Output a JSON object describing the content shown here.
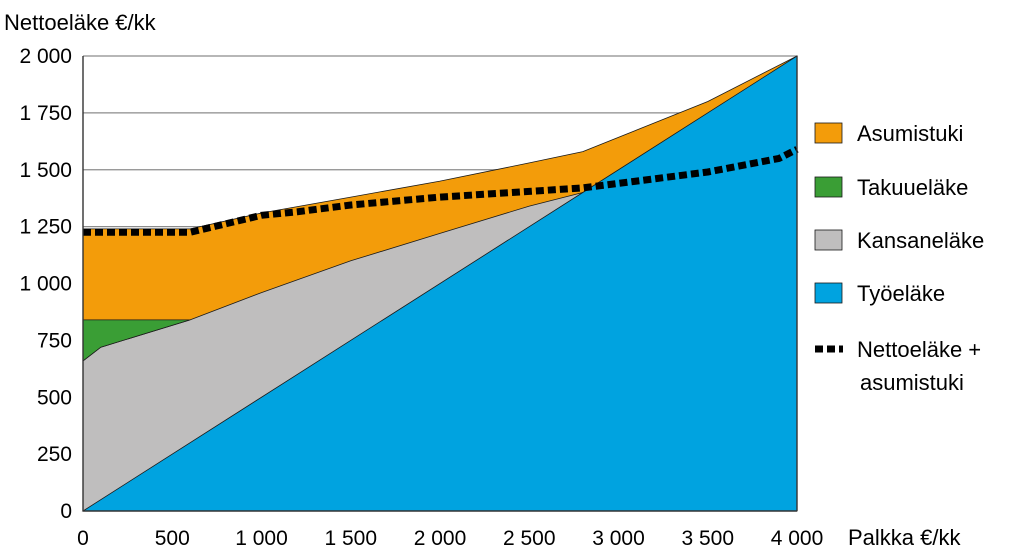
{
  "chart_data": {
    "type": "area",
    "ylabel": "Nettoeläke €/kk",
    "xlabel": "Palkka €/kk",
    "xlim": [
      0,
      4000
    ],
    "ylim": [
      0,
      2000
    ],
    "xticks": [
      0,
      500,
      1000,
      1500,
      2000,
      2500,
      3000,
      3500,
      4000
    ],
    "yticks": [
      0,
      250,
      500,
      750,
      1000,
      1250,
      1500,
      1750,
      2000
    ],
    "xtick_labels": [
      "0",
      "500",
      "1 000",
      "1 500",
      "2 000",
      "2 500",
      "3 000",
      "3 500",
      "4 000"
    ],
    "ytick_labels": [
      "0",
      "250",
      "500",
      "750",
      "1 000",
      "1 250",
      "1 500",
      "1 750",
      "2 000"
    ],
    "grid": "horizontal",
    "legend_position": "right",
    "stacked_boundaries": [
      {
        "name": "Työeläke",
        "color": "#00a3e0",
        "x": [
          0,
          2800,
          4000
        ],
        "y": [
          0,
          1400,
          2000
        ]
      },
      {
        "name": "Kansaneläke",
        "color": "#bfbebe",
        "x": [
          0,
          100,
          600,
          1000,
          1500,
          2000,
          2500,
          2800
        ],
        "y": [
          660,
          720,
          840,
          960,
          1100,
          1220,
          1340,
          1400
        ]
      },
      {
        "name": "Takuueläke",
        "color": "#3a9e35",
        "x": [
          0,
          600
        ],
        "y": [
          840,
          840
        ]
      },
      {
        "name": "Asumistuki",
        "color": "#f39c0a",
        "x": [
          0,
          600,
          1000,
          1500,
          2000,
          2500,
          2800,
          3500,
          4000
        ],
        "y": [
          1240,
          1240,
          1310,
          1380,
          1450,
          1530,
          1580,
          1800,
          2000
        ]
      }
    ],
    "line_series": {
      "name": "Nettoeläke + asumistuki",
      "color": "#000000",
      "style": "dashed",
      "x": [
        0,
        600,
        1000,
        1200,
        1500,
        2000,
        2500,
        2800,
        3000,
        3500,
        3900,
        4000
      ],
      "y": [
        1225,
        1225,
        1300,
        1315,
        1345,
        1380,
        1405,
        1420,
        1440,
        1490,
        1550,
        1590
      ]
    },
    "legend": [
      {
        "label": "Asumistuki",
        "color": "#f39c0a",
        "kind": "box"
      },
      {
        "label": "Takuueläke",
        "color": "#3a9e35",
        "kind": "box"
      },
      {
        "label": "Kansaneläke",
        "color": "#bfbebe",
        "kind": "box"
      },
      {
        "label": "Työeläke",
        "color": "#00a3e0",
        "kind": "box"
      },
      {
        "label": "Nettoeläke +",
        "label2": "asumistuki",
        "color": "#000000",
        "kind": "dashed-line"
      }
    ]
  }
}
